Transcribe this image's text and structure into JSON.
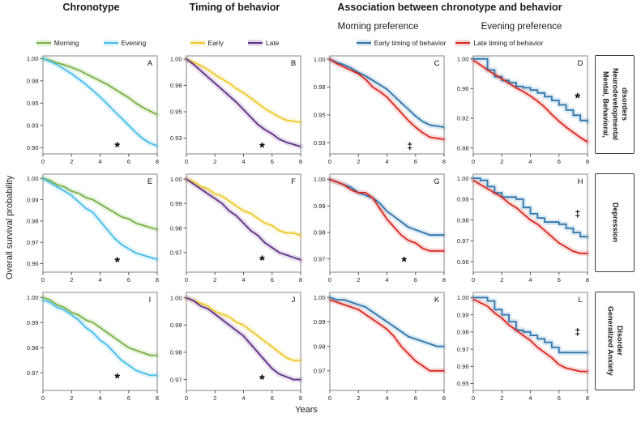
{
  "figure": {
    "col_titles": [
      "Chronotype",
      "Timing of behavior",
      "Association between chronotype and behavior"
    ],
    "sub_titles": [
      "Morning preference",
      "Evening preference"
    ],
    "ylabel": "Overall survival probability",
    "xlabel": "Years",
    "row_labels": [
      "Mental, Behavioral, Neurodevelopmental disorders",
      "Depression",
      "Generalized Anxiety Disorder"
    ],
    "colors": {
      "morning": "#76b041",
      "evening": "#45bdea",
      "early": "#eec829",
      "late": "#5f2e87",
      "early_timing": "#2b74ad",
      "late_timing": "#d8271c"
    },
    "legends": [
      [
        {
          "label": "Morning",
          "color": "#76b041"
        },
        {
          "label": "Evening",
          "color": "#45bdea"
        }
      ],
      [
        {
          "label": "Early",
          "color": "#eec829"
        },
        {
          "label": "Late",
          "color": "#5f2e87"
        }
      ],
      [
        {
          "label": "Early timing of behavior",
          "color": "#2b74ad"
        },
        {
          "label": "Late timing of behavior",
          "color": "#d8271c"
        }
      ]
    ]
  },
  "chart_meta": {
    "type": "line",
    "x": [
      0,
      0.5,
      1,
      1.5,
      2,
      2.5,
      3,
      3.5,
      4,
      4.5,
      5,
      5.5,
      6,
      6.5,
      7,
      7.5,
      8
    ],
    "xticks": [
      0,
      2,
      4,
      6,
      8
    ],
    "xlim": [
      0,
      8
    ],
    "grid": false
  },
  "chart_data": [
    {
      "letter": "A",
      "row": "Mental, Behavioral, Neurodevelopmental disorders",
      "column": "Chronotype",
      "ylim": [
        0.893,
        1.003
      ],
      "yticks": [
        {
          "v": 1.0,
          "label": "1.00"
        },
        {
          "v": 0.975,
          "label": "0.98"
        },
        {
          "v": 0.95,
          "label": "0.95"
        },
        {
          "v": 0.925,
          "label": "0.93"
        },
        {
          "v": 0.9,
          "label": "0.90"
        }
      ],
      "series": [
        {
          "name": "Morning",
          "color": "#76b041",
          "values": [
            1.0,
            0.998,
            0.995,
            0.993,
            0.99,
            0.987,
            0.983,
            0.979,
            0.975,
            0.971,
            0.966,
            0.961,
            0.956,
            0.95,
            0.945,
            0.941,
            0.937
          ]
        },
        {
          "name": "Evening",
          "color": "#45bdea",
          "values": [
            1.0,
            0.997,
            0.993,
            0.988,
            0.983,
            0.977,
            0.971,
            0.964,
            0.957,
            0.949,
            0.941,
            0.933,
            0.925,
            0.917,
            0.91,
            0.905,
            0.902
          ]
        }
      ],
      "markers": [
        {
          "x": 5.2,
          "y": 0.904,
          "symbol": "*"
        }
      ]
    },
    {
      "letter": "B",
      "row": "Mental, Behavioral, Neurodevelopmental disorders",
      "column": "Timing of behavior",
      "ylim": [
        0.91,
        1.003
      ],
      "yticks": [
        {
          "v": 1.0,
          "label": "1.00"
        },
        {
          "v": 0.975,
          "label": "0.98"
        },
        {
          "v": 0.95,
          "label": "0.95"
        },
        {
          "v": 0.925,
          "label": "0.93"
        }
      ],
      "series": [
        {
          "name": "Early",
          "color": "#eec829",
          "values": [
            1.0,
            0.997,
            0.994,
            0.99,
            0.985,
            0.981,
            0.977,
            0.972,
            0.968,
            0.963,
            0.958,
            0.953,
            0.949,
            0.945,
            0.942,
            0.941,
            0.94
          ]
        },
        {
          "name": "Late",
          "color": "#5f2e87",
          "values": [
            1.0,
            0.995,
            0.989,
            0.983,
            0.977,
            0.971,
            0.965,
            0.959,
            0.952,
            0.945,
            0.938,
            0.933,
            0.929,
            0.924,
            0.921,
            0.919,
            0.917
          ]
        }
      ],
      "markers": [
        {
          "x": 5.3,
          "y": 0.919,
          "symbol": "*"
        }
      ]
    },
    {
      "letter": "C",
      "row": "Mental, Behavioral, Neurodevelopmental disorders",
      "column": "Morning preference",
      "ylim": [
        0.915,
        1.003
      ],
      "yticks": [
        {
          "v": 1.0,
          "label": "1.00"
        },
        {
          "v": 0.975,
          "label": "0.98"
        },
        {
          "v": 0.95,
          "label": "0.95"
        },
        {
          "v": 0.925,
          "label": "0.93"
        }
      ],
      "series": [
        {
          "name": "Early timing of behavior",
          "color": "#2b74ad",
          "values": [
            1.0,
            0.997,
            0.995,
            0.992,
            0.988,
            0.985,
            0.981,
            0.977,
            0.973,
            0.967,
            0.961,
            0.955,
            0.949,
            0.944,
            0.941,
            0.94,
            0.939
          ]
        },
        {
          "name": "Late timing of behavior",
          "color": "#d8271c",
          "values": [
            1.0,
            0.996,
            0.993,
            0.99,
            0.987,
            0.982,
            0.975,
            0.971,
            0.966,
            0.959,
            0.952,
            0.945,
            0.939,
            0.934,
            0.93,
            0.929,
            0.928
          ]
        }
      ],
      "markers": [
        {
          "x": 5.6,
          "y": 0.922,
          "symbol": "‡"
        }
      ]
    },
    {
      "letter": "D",
      "row": "Mental, Behavioral, Neurodevelopmental disorders",
      "column": "Evening preference",
      "ylim": [
        0.872,
        1.004
      ],
      "yticks": [
        {
          "v": 1.0,
          "label": "1.00"
        },
        {
          "v": 0.96,
          "label": "0.96"
        },
        {
          "v": 0.92,
          "label": "0.92"
        },
        {
          "v": 0.88,
          "label": "0.88"
        }
      ],
      "series": [
        {
          "name": "Early timing of behavior",
          "color": "#2b74ad",
          "step": true,
          "values": [
            1.0,
            1.0,
            0.985,
            0.976,
            0.971,
            0.968,
            0.963,
            0.961,
            0.958,
            0.954,
            0.949,
            0.944,
            0.938,
            0.931,
            0.924,
            0.917,
            0.915
          ]
        },
        {
          "name": "Late timing of behavior",
          "color": "#d8271c",
          "values": [
            0.998,
            0.992,
            0.985,
            0.979,
            0.973,
            0.967,
            0.961,
            0.956,
            0.95,
            0.943,
            0.935,
            0.925,
            0.916,
            0.908,
            0.901,
            0.894,
            0.888
          ]
        }
      ],
      "markers": [
        {
          "x": 7.3,
          "y": 0.951,
          "symbol": "*"
        }
      ]
    },
    {
      "letter": "E",
      "row": "Depression",
      "column": "Chronotype",
      "ylim": [
        0.956,
        1.002
      ],
      "yticks": [
        {
          "v": 1.0,
          "label": "1.00"
        },
        {
          "v": 0.99,
          "label": "0.99"
        },
        {
          "v": 0.98,
          "label": "0.98"
        },
        {
          "v": 0.97,
          "label": "0.97"
        },
        {
          "v": 0.96,
          "label": "0.96"
        }
      ],
      "series": [
        {
          "name": "Morning",
          "color": "#76b041",
          "values": [
            1.0,
            0.999,
            0.997,
            0.996,
            0.994,
            0.993,
            0.991,
            0.99,
            0.988,
            0.986,
            0.984,
            0.982,
            0.981,
            0.979,
            0.978,
            0.977,
            0.976
          ]
        },
        {
          "name": "Evening",
          "color": "#45bdea",
          "values": [
            1.0,
            0.998,
            0.996,
            0.994,
            0.992,
            0.989,
            0.986,
            0.984,
            0.98,
            0.976,
            0.972,
            0.969,
            0.967,
            0.965,
            0.964,
            0.963,
            0.962
          ]
        }
      ],
      "markers": [
        {
          "x": 5.2,
          "y": 0.962,
          "symbol": "*"
        }
      ]
    },
    {
      "letter": "F",
      "row": "Depression",
      "column": "Timing of behavior",
      "ylim": [
        0.962,
        1.002
      ],
      "yticks": [
        {
          "v": 1.0,
          "label": "1.00"
        },
        {
          "v": 0.99,
          "label": "0.99"
        },
        {
          "v": 0.98,
          "label": "0.98"
        },
        {
          "v": 0.97,
          "label": "0.97"
        }
      ],
      "series": [
        {
          "name": "Early",
          "color": "#eec829",
          "values": [
            1.0,
            0.999,
            0.997,
            0.996,
            0.994,
            0.993,
            0.991,
            0.989,
            0.987,
            0.986,
            0.984,
            0.982,
            0.981,
            0.979,
            0.978,
            0.978,
            0.977
          ]
        },
        {
          "name": "Late",
          "color": "#5f2e87",
          "values": [
            1.0,
            0.998,
            0.996,
            0.994,
            0.992,
            0.99,
            0.987,
            0.985,
            0.982,
            0.979,
            0.977,
            0.974,
            0.972,
            0.97,
            0.969,
            0.968,
            0.967
          ]
        }
      ],
      "markers": [
        {
          "x": 5.3,
          "y": 0.968,
          "symbol": "*"
        }
      ]
    },
    {
      "letter": "G",
      "row": "Depression",
      "column": "Morning preference",
      "ylim": [
        0.965,
        1.002
      ],
      "yticks": [
        {
          "v": 1.0,
          "label": "1.00"
        },
        {
          "v": 0.99,
          "label": "0.99"
        },
        {
          "v": 0.98,
          "label": "0.98"
        },
        {
          "v": 0.97,
          "label": "0.97"
        }
      ],
      "series": [
        {
          "name": "Early timing of behavior",
          "color": "#2b74ad",
          "values": [
            1.0,
            0.999,
            0.998,
            0.997,
            0.995,
            0.994,
            0.993,
            0.991,
            0.988,
            0.986,
            0.984,
            0.982,
            0.981,
            0.98,
            0.979,
            0.979,
            0.979
          ]
        },
        {
          "name": "Late timing of behavior",
          "color": "#d8271c",
          "values": [
            1.0,
            0.999,
            0.998,
            0.996,
            0.995,
            0.995,
            0.993,
            0.989,
            0.985,
            0.982,
            0.979,
            0.977,
            0.976,
            0.974,
            0.973,
            0.973,
            0.973
          ]
        }
      ],
      "markers": [
        {
          "x": 5.2,
          "y": 0.97,
          "symbol": "*"
        }
      ]
    },
    {
      "letter": "H",
      "row": "Depression",
      "column": "Evening preference",
      "ylim": [
        0.955,
        1.002
      ],
      "yticks": [
        {
          "v": 1.0,
          "label": "1.00"
        },
        {
          "v": 0.99,
          "label": "0.99"
        },
        {
          "v": 0.98,
          "label": "0.98"
        },
        {
          "v": 0.97,
          "label": "0.97"
        },
        {
          "v": 0.96,
          "label": "0.96"
        }
      ],
      "series": [
        {
          "name": "Early timing of behavior",
          "color": "#2b74ad",
          "step": true,
          "values": [
            1.0,
            0.999,
            0.996,
            0.993,
            0.991,
            0.991,
            0.99,
            0.986,
            0.983,
            0.981,
            0.979,
            0.979,
            0.978,
            0.976,
            0.974,
            0.972,
            0.972
          ]
        },
        {
          "name": "Late timing of behavior",
          "color": "#d8271c",
          "values": [
            0.999,
            0.997,
            0.995,
            0.993,
            0.991,
            0.988,
            0.986,
            0.983,
            0.98,
            0.978,
            0.975,
            0.972,
            0.969,
            0.967,
            0.965,
            0.964,
            0.964
          ]
        }
      ],
      "markers": [
        {
          "x": 7.3,
          "y": 0.983,
          "symbol": "‡"
        }
      ]
    },
    {
      "letter": "I",
      "row": "Generalized Anxiety Disorder",
      "column": "Chronotype",
      "ylim": [
        0.963,
        1.002
      ],
      "yticks": [
        {
          "v": 1.0,
          "label": "1.00"
        },
        {
          "v": 0.99,
          "label": "0.99"
        },
        {
          "v": 0.98,
          "label": "0.98"
        },
        {
          "v": 0.97,
          "label": "0.97"
        }
      ],
      "series": [
        {
          "name": "Morning",
          "color": "#76b041",
          "values": [
            1.0,
            0.999,
            0.997,
            0.996,
            0.994,
            0.993,
            0.991,
            0.99,
            0.988,
            0.986,
            0.984,
            0.982,
            0.98,
            0.979,
            0.978,
            0.977,
            0.977
          ]
        },
        {
          "name": "Evening",
          "color": "#45bdea",
          "values": [
            0.999,
            0.998,
            0.996,
            0.995,
            0.993,
            0.991,
            0.988,
            0.986,
            0.983,
            0.981,
            0.978,
            0.975,
            0.973,
            0.971,
            0.97,
            0.969,
            0.969
          ]
        }
      ],
      "markers": [
        {
          "x": 5.2,
          "y": 0.969,
          "symbol": "*"
        }
      ]
    },
    {
      "letter": "J",
      "row": "Generalized Anxiety Disorder",
      "column": "Timing of behavior",
      "ylim": [
        0.966,
        1.002
      ],
      "yticks": [
        {
          "v": 1.0,
          "label": "1.00"
        },
        {
          "v": 0.99,
          "label": "0.99"
        },
        {
          "v": 0.98,
          "label": "0.98"
        },
        {
          "v": 0.97,
          "label": "0.97"
        }
      ],
      "series": [
        {
          "name": "Early",
          "color": "#eec829",
          "values": [
            1.0,
            0.999,
            0.998,
            0.997,
            0.995,
            0.994,
            0.993,
            0.991,
            0.99,
            0.988,
            0.986,
            0.984,
            0.982,
            0.98,
            0.978,
            0.977,
            0.977
          ]
        },
        {
          "name": "Late",
          "color": "#5f2e87",
          "values": [
            1.0,
            0.999,
            0.997,
            0.996,
            0.994,
            0.992,
            0.99,
            0.988,
            0.986,
            0.983,
            0.98,
            0.977,
            0.974,
            0.972,
            0.971,
            0.97,
            0.97
          ]
        }
      ],
      "markers": [
        {
          "x": 5.3,
          "y": 0.971,
          "symbol": "*"
        }
      ]
    },
    {
      "letter": "K",
      "row": "Generalized Anxiety Disorder",
      "column": "Morning preference",
      "ylim": [
        0.962,
        1.002
      ],
      "yticks": [
        {
          "v": 1.0,
          "label": "1.00"
        },
        {
          "v": 0.99,
          "label": "0.99"
        },
        {
          "v": 0.98,
          "label": "0.98"
        },
        {
          "v": 0.97,
          "label": "0.97"
        }
      ],
      "series": [
        {
          "name": "Early timing of behavior",
          "color": "#2b74ad",
          "values": [
            1.0,
            0.999,
            0.999,
            0.998,
            0.997,
            0.996,
            0.994,
            0.992,
            0.99,
            0.988,
            0.986,
            0.984,
            0.983,
            0.982,
            0.981,
            0.98,
            0.98
          ]
        },
        {
          "name": "Late timing of behavior",
          "color": "#d8271c",
          "values": [
            0.999,
            0.998,
            0.997,
            0.996,
            0.995,
            0.993,
            0.991,
            0.989,
            0.987,
            0.984,
            0.98,
            0.977,
            0.974,
            0.972,
            0.97,
            0.97,
            0.97
          ]
        }
      ],
      "markers": []
    },
    {
      "letter": "L",
      "row": "Generalized Anxiety Disorder",
      "column": "Evening preference",
      "ylim": [
        0.946,
        1.003
      ],
      "yticks": [
        {
          "v": 1.0,
          "label": "1.00"
        },
        {
          "v": 0.99,
          "label": "0.99"
        },
        {
          "v": 0.98,
          "label": "0.98"
        },
        {
          "v": 0.97,
          "label": "0.97"
        },
        {
          "v": 0.96,
          "label": "0.96"
        },
        {
          "v": 0.95,
          "label": "0.95"
        }
      ],
      "series": [
        {
          "name": "Early timing of behavior",
          "color": "#2b74ad",
          "step": true,
          "values": [
            1.0,
            1.0,
            0.998,
            0.993,
            0.99,
            0.986,
            0.981,
            0.98,
            0.978,
            0.976,
            0.974,
            0.971,
            0.968,
            0.968,
            0.968,
            0.968,
            0.968
          ]
        },
        {
          "name": "Late timing of behavior",
          "color": "#d8271c",
          "values": [
            0.999,
            0.997,
            0.995,
            0.991,
            0.988,
            0.984,
            0.981,
            0.978,
            0.975,
            0.971,
            0.968,
            0.965,
            0.961,
            0.959,
            0.958,
            0.957,
            0.957
          ]
        }
      ],
      "markers": [
        {
          "x": 7.3,
          "y": 0.98,
          "symbol": "‡"
        }
      ]
    }
  ]
}
